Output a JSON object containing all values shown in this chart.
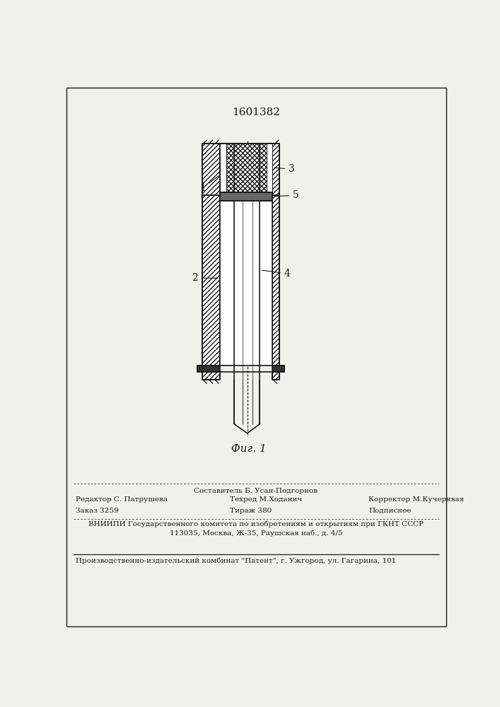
{
  "patent_number": "1601382",
  "fig_label": "Фиг. 1",
  "bg_color": "#f0f0ed",
  "line_color": "#1a1a1a",
  "footer": {
    "sostavitel": "Составитель Б. Усан-Подгорнов",
    "redaktor": "Редактор С. Патрушева",
    "tehred": "Техред М.Ходанич",
    "korrektor": "Корректор М.Кучерявая",
    "zakaz": "Заказ 3259",
    "tirazh": "Тираж 380",
    "podpisnoe": "Подписное",
    "vniipи": "ВНИИПИ Государственного комитета по изобретениям и открытиям при ГКНТ СССР",
    "address": "113035, Москва, Ж-35, Раушская наб., д. 4/5",
    "kombinat": "Производственно-издательский комбинат \"Патент\", г. Ужгород, ул. Гагарина, 101"
  }
}
